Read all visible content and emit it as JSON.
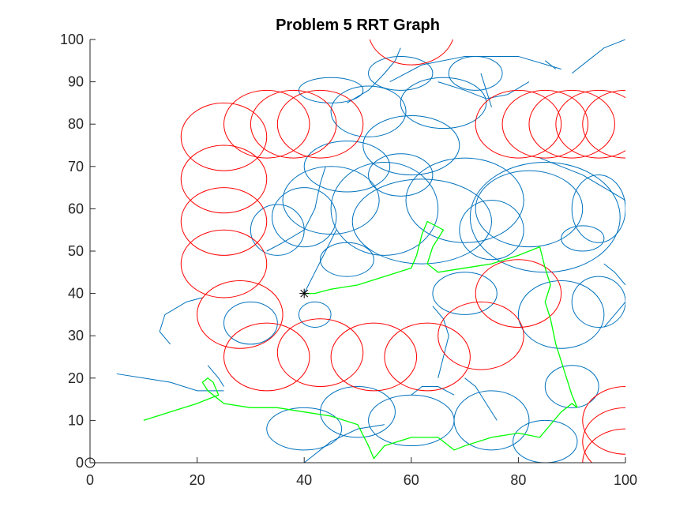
{
  "chart_data": {
    "type": "scatter",
    "title": "Problem 5 RRT Graph",
    "xlabel": "",
    "ylabel": "",
    "xlim": [
      0,
      100
    ],
    "ylim": [
      0,
      100
    ],
    "xticks": [
      0,
      20,
      40,
      60,
      80,
      100
    ],
    "yticks": [
      0,
      10,
      20,
      30,
      40,
      50,
      60,
      70,
      80,
      90,
      100
    ],
    "grid": false,
    "legend": "none",
    "colors": {
      "tree": "#0072BD",
      "path": "#00FF00",
      "obstacles": "#FF0000",
      "axes": "#262626"
    },
    "start": {
      "x": 0,
      "y": 0,
      "marker": "circle"
    },
    "goal": {
      "x": 40,
      "y": 40,
      "marker": "asterisk"
    },
    "obstacles": [
      {
        "cx": 25,
        "cy": 77,
        "r": 8
      },
      {
        "cx": 25,
        "cy": 67,
        "r": 8
      },
      {
        "cx": 25,
        "cy": 57,
        "r": 8
      },
      {
        "cx": 25,
        "cy": 47,
        "r": 8
      },
      {
        "cx": 28,
        "cy": 35,
        "r": 8
      },
      {
        "cx": 33,
        "cy": 25,
        "r": 8
      },
      {
        "cx": 43,
        "cy": 26,
        "r": 8
      },
      {
        "cx": 53,
        "cy": 25,
        "r": 8
      },
      {
        "cx": 63,
        "cy": 25,
        "r": 8
      },
      {
        "cx": 73,
        "cy": 30,
        "r": 8
      },
      {
        "cx": 80,
        "cy": 40,
        "r": 8
      },
      {
        "cx": 33,
        "cy": 80,
        "r": 8
      },
      {
        "cx": 38,
        "cy": 80,
        "r": 8
      },
      {
        "cx": 43,
        "cy": 80,
        "r": 8
      },
      {
        "cx": 80,
        "cy": 80,
        "r": 8
      },
      {
        "cx": 85,
        "cy": 80,
        "r": 8
      },
      {
        "cx": 90,
        "cy": 80,
        "r": 8
      },
      {
        "cx": 95,
        "cy": 80,
        "r": 8
      },
      {
        "cx": 100,
        "cy": 80,
        "r": 8
      },
      {
        "cx": 60,
        "cy": 102,
        "r": 8
      },
      {
        "cx": 100,
        "cy": 10,
        "r": 8
      },
      {
        "cx": 100,
        "cy": 5,
        "r": 8
      },
      {
        "cx": 100,
        "cy": 0,
        "r": 8
      }
    ],
    "path": [
      [
        10,
        10
      ],
      [
        15,
        12
      ],
      [
        20,
        14
      ],
      [
        24,
        16
      ],
      [
        23,
        19
      ],
      [
        22,
        20
      ],
      [
        21,
        19
      ],
      [
        22,
        17
      ],
      [
        25,
        14
      ],
      [
        30,
        13
      ],
      [
        35,
        13
      ],
      [
        40,
        12
      ],
      [
        45,
        11
      ],
      [
        50,
        9
      ],
      [
        52,
        4
      ],
      [
        53,
        1
      ],
      [
        55,
        4
      ],
      [
        60,
        6
      ],
      [
        65,
        6
      ],
      [
        68,
        3
      ],
      [
        70,
        4
      ],
      [
        75,
        6
      ],
      [
        80,
        7
      ],
      [
        84,
        6
      ],
      [
        86,
        9
      ],
      [
        88,
        12
      ],
      [
        90,
        14
      ],
      [
        91,
        13
      ],
      [
        90,
        16
      ],
      [
        89,
        20
      ],
      [
        88,
        24
      ],
      [
        87,
        28
      ],
      [
        86,
        34
      ],
      [
        85,
        38
      ],
      [
        86,
        42
      ],
      [
        85,
        46
      ],
      [
        84,
        51
      ],
      [
        80,
        49
      ],
      [
        75,
        47
      ],
      [
        70,
        46
      ],
      [
        65,
        45
      ],
      [
        63,
        47
      ],
      [
        64,
        51
      ],
      [
        66,
        55
      ],
      [
        63,
        57
      ],
      [
        62,
        54
      ],
      [
        61,
        49
      ],
      [
        60,
        46
      ],
      [
        55,
        44
      ],
      [
        50,
        42
      ],
      [
        45,
        41
      ],
      [
        42,
        40
      ],
      [
        40,
        40
      ]
    ],
    "tree_curves": [
      {
        "c": [
          62,
          57
        ],
        "rx": 13,
        "ry": 10
      },
      {
        "c": [
          85,
          58
        ],
        "rx": 14,
        "ry": 13
      },
      {
        "c": [
          45,
          62
        ],
        "rx": 9,
        "ry": 8
      },
      {
        "c": [
          55,
          60
        ],
        "rx": 10,
        "ry": 11
      },
      {
        "c": [
          70,
          62
        ],
        "rx": 11,
        "ry": 10
      },
      {
        "c": [
          40,
          58
        ],
        "rx": 6,
        "ry": 7
      },
      {
        "c": [
          92,
          53
        ],
        "rx": 4,
        "ry": 3
      },
      {
        "c": [
          48,
          70
        ],
        "rx": 8,
        "ry": 6
      },
      {
        "c": [
          60,
          75
        ],
        "rx": 9,
        "ry": 7
      },
      {
        "c": [
          52,
          83
        ],
        "rx": 7,
        "ry": 6
      },
      {
        "c": [
          66,
          85
        ],
        "rx": 8,
        "ry": 6
      },
      {
        "c": [
          88,
          35
        ],
        "rx": 8,
        "ry": 8
      },
      {
        "c": [
          95,
          38
        ],
        "rx": 5,
        "ry": 6
      },
      {
        "c": [
          60,
          10
        ],
        "rx": 8,
        "ry": 6
      },
      {
        "c": [
          50,
          12
        ],
        "rx": 7,
        "ry": 6
      },
      {
        "c": [
          40,
          8
        ],
        "rx": 7,
        "ry": 5
      },
      {
        "c": [
          75,
          10
        ],
        "rx": 7,
        "ry": 7
      },
      {
        "c": [
          85,
          5
        ],
        "rx": 6,
        "ry": 5
      },
      {
        "c": [
          90,
          18
        ],
        "rx": 5,
        "ry": 5
      },
      {
        "c": [
          70,
          40
        ],
        "rx": 6,
        "ry": 5
      },
      {
        "c": [
          82,
          60
        ],
        "rx": 10,
        "ry": 9
      },
      {
        "c": [
          35,
          55
        ],
        "rx": 5,
        "ry": 6
      },
      {
        "c": [
          48,
          48
        ],
        "rx": 5,
        "ry": 4
      },
      {
        "c": [
          58,
          68
        ],
        "rx": 6,
        "ry": 5
      },
      {
        "c": [
          75,
          55
        ],
        "rx": 6,
        "ry": 7
      },
      {
        "c": [
          95,
          60
        ],
        "rx": 5,
        "ry": 8
      },
      {
        "c": [
          58,
          92
        ],
        "rx": 6,
        "ry": 4
      },
      {
        "c": [
          72,
          92
        ],
        "rx": 5,
        "ry": 4
      },
      {
        "c": [
          45,
          88
        ],
        "rx": 6,
        "ry": 3
      },
      {
        "c": [
          30,
          33
        ],
        "rx": 5,
        "ry": 5
      },
      {
        "c": [
          42,
          35
        ],
        "rx": 3,
        "ry": 3
      }
    ],
    "tree_paths": [
      [
        [
          5,
          21
        ],
        [
          10,
          20
        ],
        [
          15,
          19
        ],
        [
          20,
          17
        ],
        [
          25,
          17
        ]
      ],
      [
        [
          21,
          39
        ],
        [
          18,
          38
        ],
        [
          14,
          35
        ],
        [
          13,
          31
        ],
        [
          15,
          28
        ]
      ],
      [
        [
          22,
          23
        ],
        [
          24,
          20
        ],
        [
          25,
          18
        ]
      ],
      [
        [
          56,
          90
        ],
        [
          62,
          94
        ],
        [
          70,
          96
        ],
        [
          80,
          96
        ],
        [
          88,
          93
        ]
      ],
      [
        [
          90,
          92
        ],
        [
          93,
          95
        ],
        [
          96,
          98
        ],
        [
          100,
          100
        ]
      ],
      [
        [
          85,
          95
        ],
        [
          87,
          93
        ]
      ],
      [
        [
          40,
          40
        ],
        [
          42,
          45
        ],
        [
          44,
          50
        ],
        [
          46,
          55
        ]
      ],
      [
        [
          64,
          37
        ],
        [
          66,
          34
        ],
        [
          67,
          30
        ],
        [
          66,
          25
        ],
        [
          65,
          20
        ]
      ],
      [
        [
          70,
          20
        ],
        [
          72,
          18
        ],
        [
          74,
          14
        ],
        [
          76,
          10
        ]
      ],
      [
        [
          96,
          47
        ],
        [
          98,
          45
        ],
        [
          100,
          42
        ]
      ],
      [
        [
          96,
          32
        ],
        [
          98,
          35
        ],
        [
          100,
          38
        ]
      ],
      [
        [
          40,
          0
        ],
        [
          45,
          5
        ],
        [
          50,
          8
        ],
        [
          55,
          9
        ]
      ],
      [
        [
          60,
          16
        ],
        [
          62,
          18
        ],
        [
          65,
          18
        ],
        [
          68,
          16
        ]
      ],
      [
        [
          33,
          50
        ],
        [
          36,
          52
        ],
        [
          40,
          55
        ],
        [
          42,
          60
        ],
        [
          43,
          66
        ],
        [
          44,
          70
        ]
      ],
      [
        [
          48,
          85
        ],
        [
          52,
          88
        ],
        [
          55,
          92
        ],
        [
          57,
          95
        ],
        [
          58,
          98
        ]
      ],
      [
        [
          65,
          90
        ],
        [
          70,
          88
        ],
        [
          74,
          86
        ],
        [
          78,
          87
        ],
        [
          82,
          90
        ]
      ],
      [
        [
          73,
          92
        ],
        [
          74,
          88
        ],
        [
          75,
          84
        ]
      ],
      [
        [
          84,
          72
        ],
        [
          88,
          70
        ],
        [
          92,
          68
        ],
        [
          96,
          65
        ],
        [
          100,
          62
        ]
      ]
    ]
  }
}
